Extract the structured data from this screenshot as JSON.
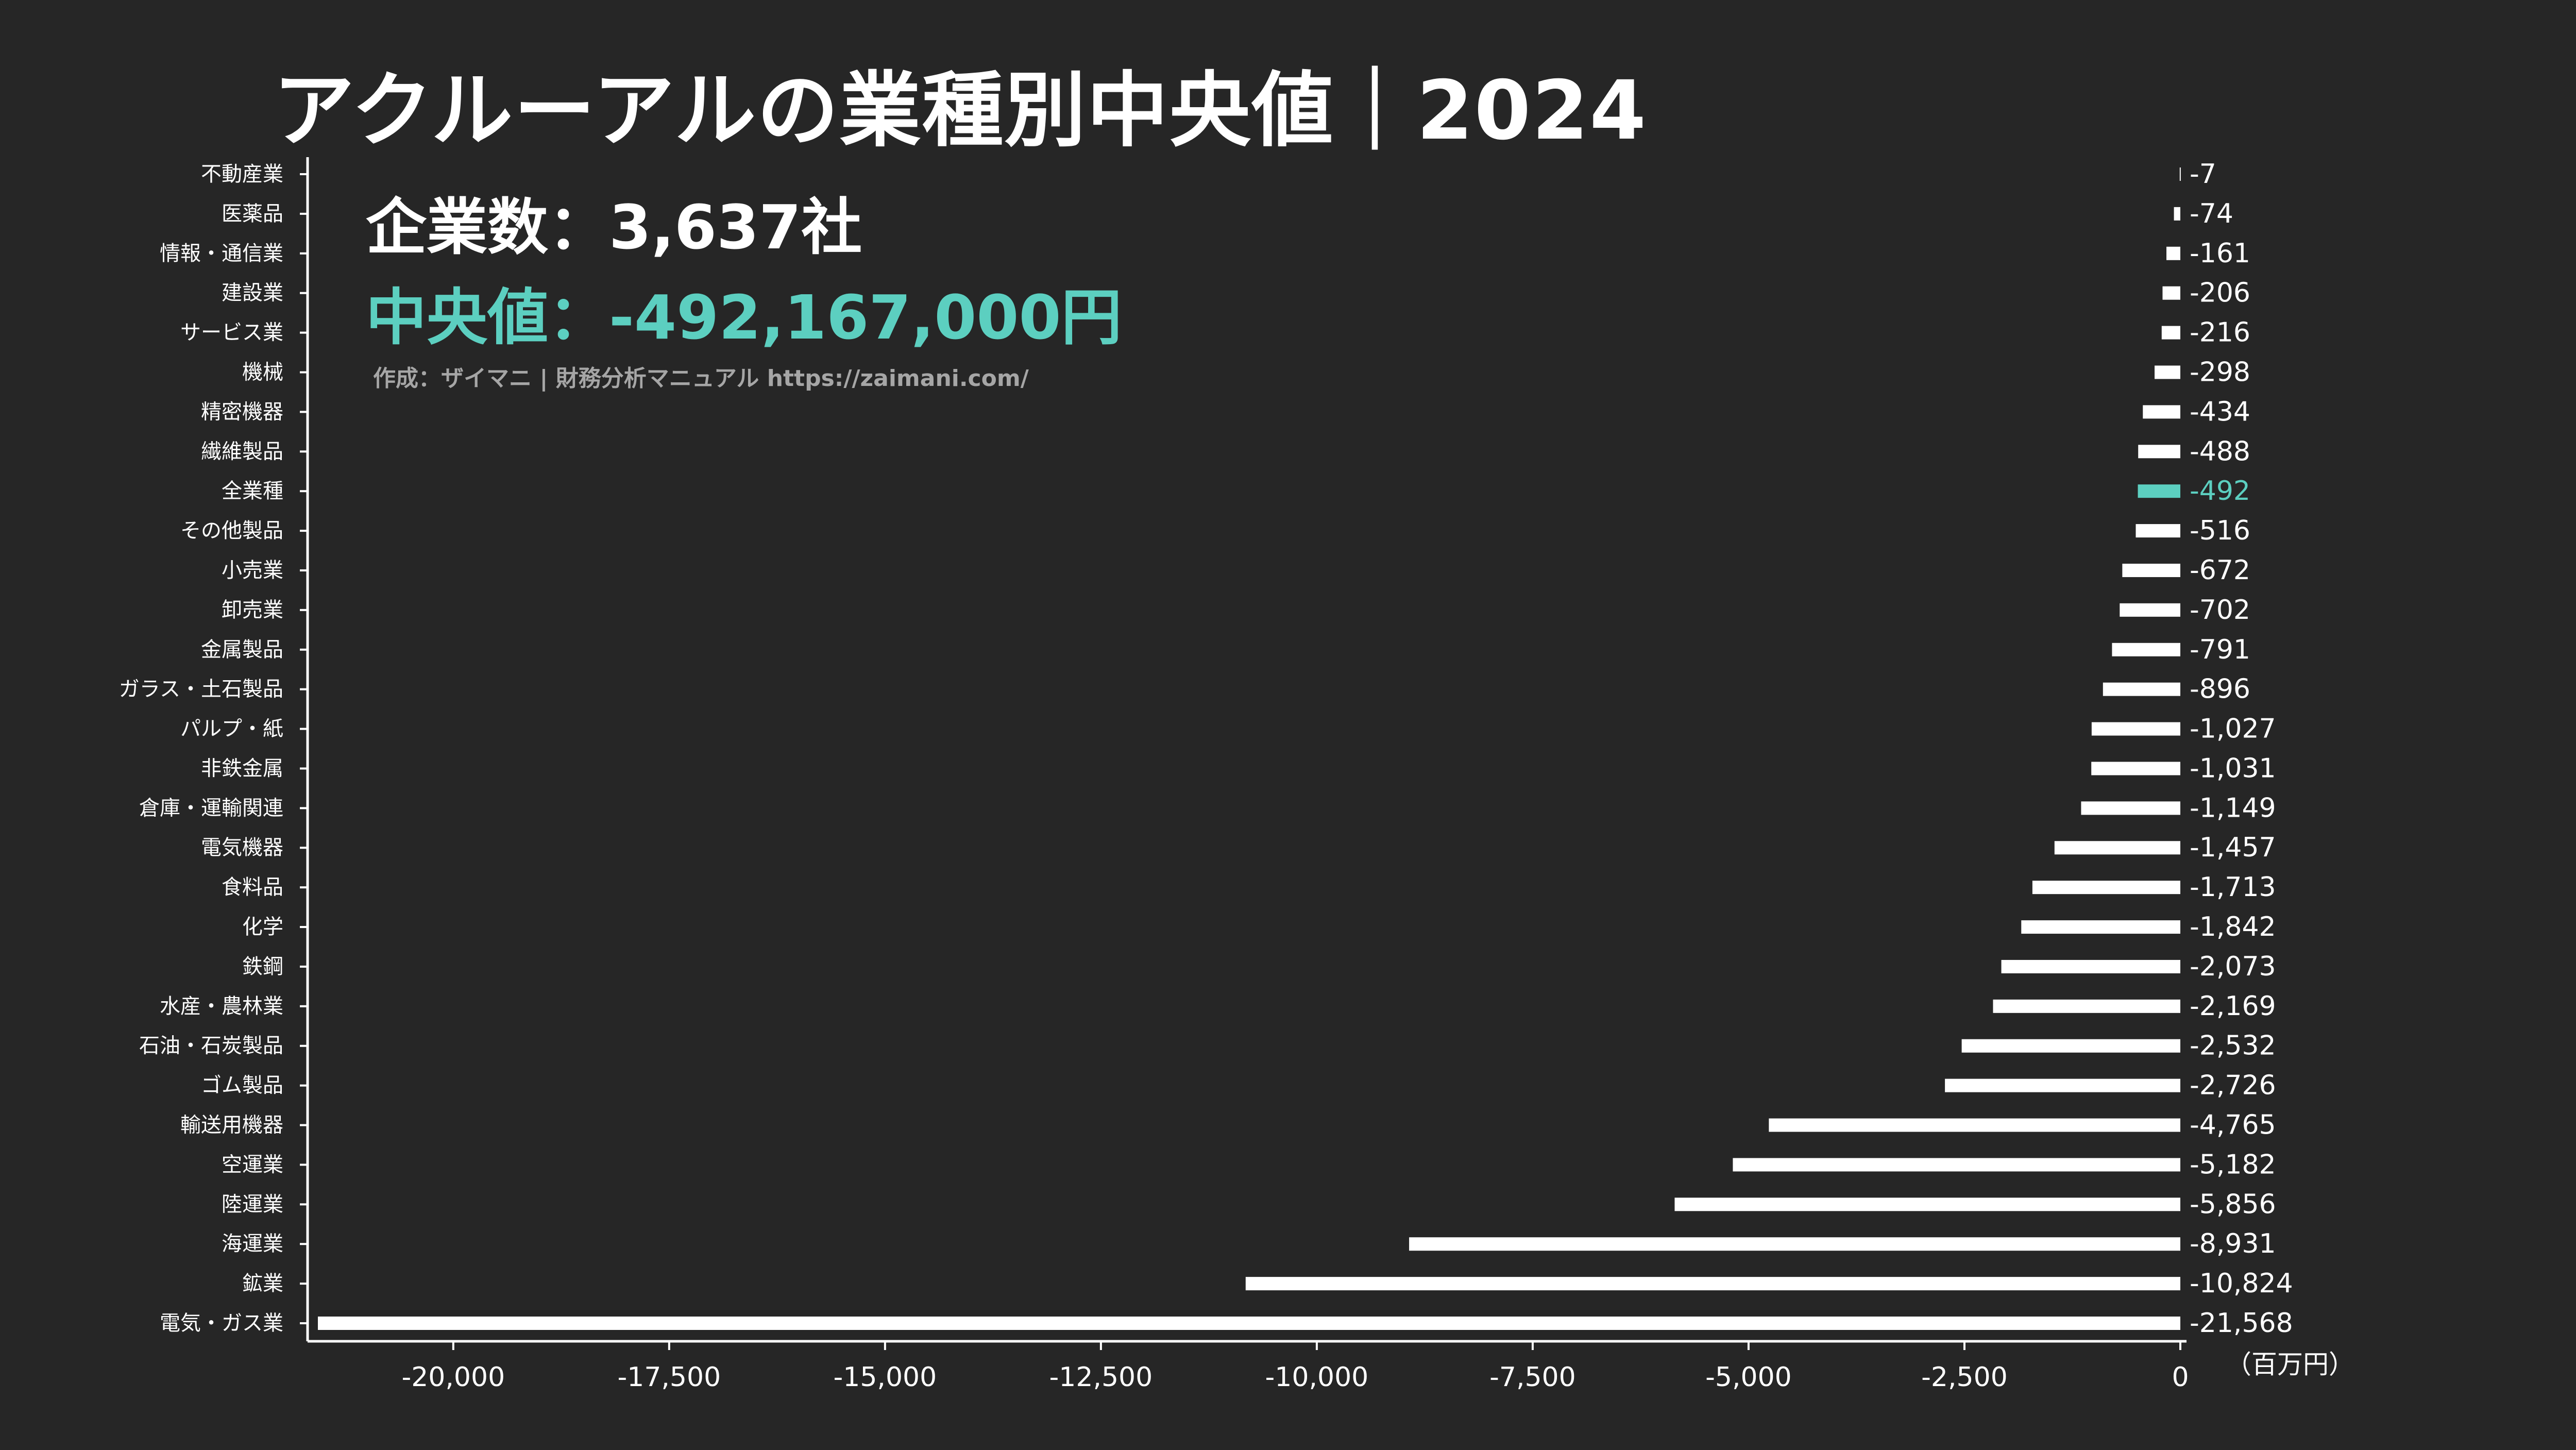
{
  "title": "アクルーアルの業種別中央値｜2024",
  "stats": {
    "count_label": "企業数：3,637社",
    "median_label": "中央値：-492,167,000円"
  },
  "credit": "作成：ザイマニ | 財務分析マニュアル https://zaimani.com/",
  "colors": {
    "background": "#262626",
    "bar": "#ffffff",
    "highlight": "#5ccfc0",
    "text": "#ffffff"
  },
  "chart_data": {
    "type": "bar",
    "orientation": "horizontal",
    "unit_label": "（百万円）",
    "highlight_category": "全業種",
    "xlim": [
      -21568,
      0
    ],
    "xticks": [
      {
        "value": -20000,
        "label": "-20,000"
      },
      {
        "value": -17500,
        "label": "-17,500"
      },
      {
        "value": -15000,
        "label": "-15,000"
      },
      {
        "value": -12500,
        "label": "-12,500"
      },
      {
        "value": -10000,
        "label": "-10,000"
      },
      {
        "value": -7500,
        "label": "-7,500"
      },
      {
        "value": -5000,
        "label": "-5,000"
      },
      {
        "value": -2500,
        "label": "-2,500"
      },
      {
        "value": 0,
        "label": "0"
      }
    ],
    "categories": [
      {
        "name": "不動産業",
        "value": -7,
        "label": "-7"
      },
      {
        "name": "医薬品",
        "value": -74,
        "label": "-74"
      },
      {
        "name": "情報・通信業",
        "value": -161,
        "label": "-161"
      },
      {
        "name": "建設業",
        "value": -206,
        "label": "-206"
      },
      {
        "name": "サービス業",
        "value": -216,
        "label": "-216"
      },
      {
        "name": "機械",
        "value": -298,
        "label": "-298"
      },
      {
        "name": "精密機器",
        "value": -434,
        "label": "-434"
      },
      {
        "name": "繊維製品",
        "value": -488,
        "label": "-488"
      },
      {
        "name": "全業種",
        "value": -492,
        "label": "-492"
      },
      {
        "name": "その他製品",
        "value": -516,
        "label": "-516"
      },
      {
        "name": "小売業",
        "value": -672,
        "label": "-672"
      },
      {
        "name": "卸売業",
        "value": -702,
        "label": "-702"
      },
      {
        "name": "金属製品",
        "value": -791,
        "label": "-791"
      },
      {
        "name": "ガラス・土石製品",
        "value": -896,
        "label": "-896"
      },
      {
        "name": "パルプ・紙",
        "value": -1027,
        "label": "-1,027"
      },
      {
        "name": "非鉄金属",
        "value": -1031,
        "label": "-1,031"
      },
      {
        "name": "倉庫・運輸関連",
        "value": -1149,
        "label": "-1,149"
      },
      {
        "name": "電気機器",
        "value": -1457,
        "label": "-1,457"
      },
      {
        "name": "食料品",
        "value": -1713,
        "label": "-1,713"
      },
      {
        "name": "化学",
        "value": -1842,
        "label": "-1,842"
      },
      {
        "name": "鉄鋼",
        "value": -2073,
        "label": "-2,073"
      },
      {
        "name": "水産・農林業",
        "value": -2169,
        "label": "-2,169"
      },
      {
        "name": "石油・石炭製品",
        "value": -2532,
        "label": "-2,532"
      },
      {
        "name": "ゴム製品",
        "value": -2726,
        "label": "-2,726"
      },
      {
        "name": "輸送用機器",
        "value": -4765,
        "label": "-4,765"
      },
      {
        "name": "空運業",
        "value": -5182,
        "label": "-5,182"
      },
      {
        "name": "陸運業",
        "value": -5856,
        "label": "-5,856"
      },
      {
        "name": "海運業",
        "value": -8931,
        "label": "-8,931"
      },
      {
        "name": "鉱業",
        "value": -10824,
        "label": "-10,824"
      },
      {
        "name": "電気・ガス業",
        "value": -21568,
        "label": "-21,568"
      }
    ]
  }
}
